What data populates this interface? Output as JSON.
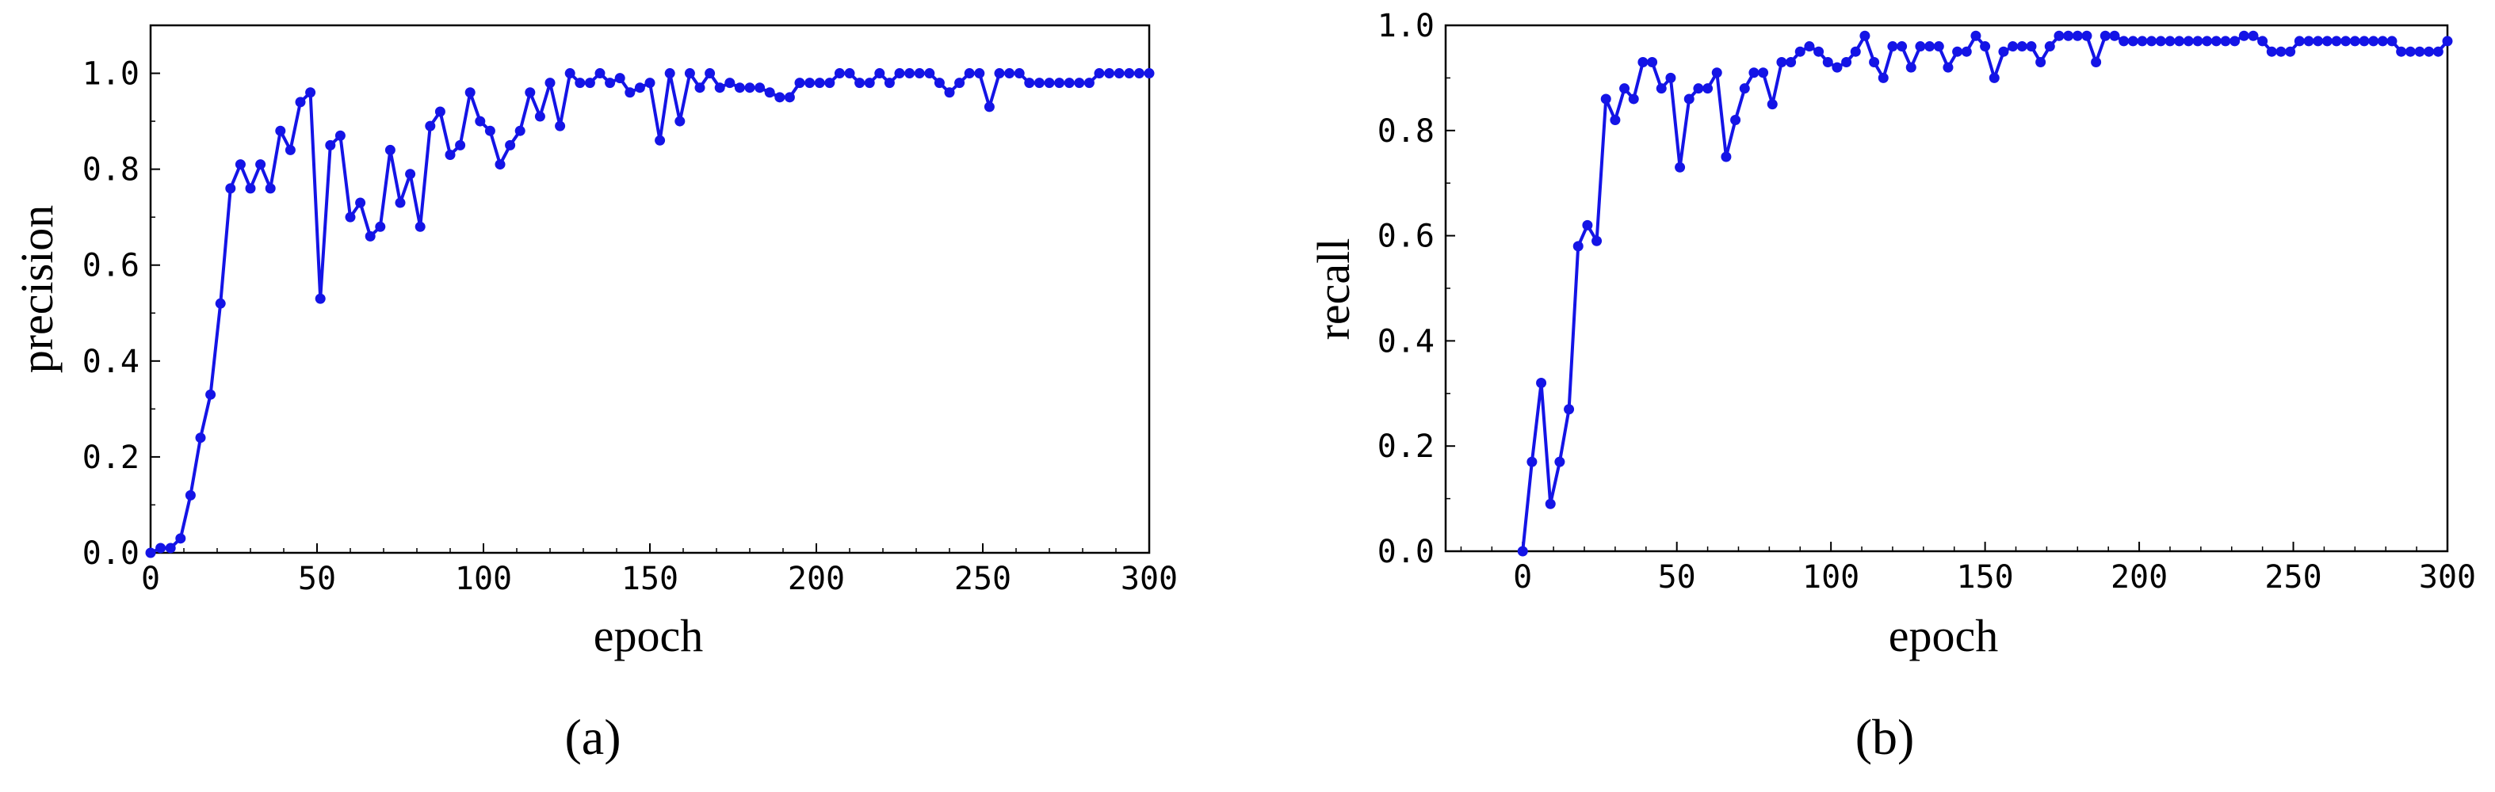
{
  "figure": {
    "panel_labels": [
      "(a)",
      "(b)"
    ]
  },
  "chart_data": [
    {
      "type": "line",
      "panel": "(a)",
      "xlabel": "epoch",
      "ylabel": "precision",
      "xlim": [
        0,
        300
      ],
      "ylim": [
        0,
        1.1
      ],
      "xticks": [
        "0",
        "50",
        "100",
        "150",
        "200",
        "250",
        "300"
      ],
      "yticks": [
        "0.0",
        "0.2",
        "0.4",
        "0.6",
        "0.8",
        "1.0"
      ],
      "grid": false,
      "line_color": "#1414e6",
      "series": [
        {
          "x": [
            0,
            3,
            6,
            9,
            12,
            15,
            18,
            21,
            24,
            27,
            30,
            33,
            36,
            39,
            42,
            45,
            48,
            51,
            54,
            57,
            60,
            63,
            66,
            69,
            72,
            75,
            78,
            81,
            84,
            87,
            90,
            93,
            96,
            99,
            102,
            105,
            108,
            111,
            114,
            117,
            120,
            123,
            126,
            129,
            132,
            135,
            138,
            141,
            144,
            147,
            150,
            153,
            156,
            159,
            162,
            165,
            168,
            171,
            174,
            177,
            180,
            183,
            186,
            189,
            192,
            195,
            198,
            201,
            204,
            207,
            210,
            213,
            216,
            219,
            222,
            225,
            228,
            231,
            234,
            237,
            240,
            243,
            246,
            249,
            252,
            255,
            258,
            261,
            264,
            267,
            270,
            273,
            276,
            279,
            282,
            285,
            288,
            291,
            294,
            297,
            300
          ],
          "y": [
            0.0,
            0.01,
            0.01,
            0.03,
            0.12,
            0.24,
            0.33,
            0.52,
            0.76,
            0.81,
            0.76,
            0.81,
            0.76,
            0.88,
            0.84,
            0.94,
            0.96,
            0.53,
            0.85,
            0.87,
            0.7,
            0.73,
            0.66,
            0.68,
            0.84,
            0.73,
            0.79,
            0.68,
            0.89,
            0.92,
            0.83,
            0.85,
            0.96,
            0.9,
            0.88,
            0.81,
            0.85,
            0.88,
            0.96,
            0.91,
            0.98,
            0.89,
            1.0,
            0.98,
            0.98,
            1.0,
            0.98,
            0.99,
            0.96,
            0.97,
            0.98,
            0.86,
            1.0,
            0.9,
            1.0,
            0.97,
            1.0,
            0.97,
            0.98,
            0.97,
            0.97,
            0.97,
            0.96,
            0.95,
            0.95,
            0.98,
            0.98,
            0.98,
            0.98,
            1.0,
            1.0,
            0.98,
            0.98,
            1.0,
            0.98,
            1.0,
            1.0,
            1.0,
            1.0,
            0.98,
            0.96,
            0.98,
            1.0,
            1.0,
            0.93,
            1.0,
            1.0,
            1.0,
            0.98,
            0.98,
            0.98,
            0.98,
            0.98,
            0.98,
            0.98,
            1.0,
            1.0,
            1.0,
            1.0,
            1.0,
            1.0
          ]
        }
      ]
    },
    {
      "type": "line",
      "panel": "(b)",
      "xlabel": "epoch",
      "ylabel": "recall",
      "xlim": [
        -25,
        300
      ],
      "ylim": [
        0,
        1.0
      ],
      "xticks": [
        "0",
        "50",
        "100",
        "150",
        "200",
        "250",
        "300"
      ],
      "yticks": [
        "0.0",
        "0.2",
        "0.4",
        "0.6",
        "0.8",
        "1.0"
      ],
      "grid": false,
      "line_color": "#1414e6",
      "series": [
        {
          "x": [
            0,
            3,
            6,
            9,
            12,
            15,
            18,
            21,
            24,
            27,
            30,
            33,
            36,
            39,
            42,
            45,
            48,
            51,
            54,
            57,
            60,
            63,
            66,
            69,
            72,
            75,
            78,
            81,
            84,
            87,
            90,
            93,
            96,
            99,
            102,
            105,
            108,
            111,
            114,
            117,
            120,
            123,
            126,
            129,
            132,
            135,
            138,
            141,
            144,
            147,
            150,
            153,
            156,
            159,
            162,
            165,
            168,
            171,
            174,
            177,
            180,
            183,
            186,
            189,
            192,
            195,
            198,
            201,
            204,
            207,
            210,
            213,
            216,
            219,
            222,
            225,
            228,
            231,
            234,
            237,
            240,
            243,
            246,
            249,
            252,
            255,
            258,
            261,
            264,
            267,
            270,
            273,
            276,
            279,
            282,
            285,
            288,
            291,
            294,
            297,
            300
          ],
          "y": [
            0.0,
            0.17,
            0.32,
            0.09,
            0.17,
            0.27,
            0.58,
            0.62,
            0.59,
            0.86,
            0.82,
            0.88,
            0.86,
            0.93,
            0.93,
            0.88,
            0.9,
            0.73,
            0.86,
            0.88,
            0.88,
            0.91,
            0.75,
            0.82,
            0.88,
            0.91,
            0.91,
            0.85,
            0.93,
            0.93,
            0.95,
            0.96,
            0.95,
            0.93,
            0.92,
            0.93,
            0.95,
            0.98,
            0.93,
            0.9,
            0.96,
            0.96,
            0.92,
            0.96,
            0.96,
            0.96,
            0.92,
            0.95,
            0.95,
            0.98,
            0.96,
            0.9,
            0.95,
            0.96,
            0.96,
            0.96,
            0.93,
            0.96,
            0.98,
            0.98,
            0.98,
            0.98,
            0.93,
            0.98,
            0.98,
            0.97,
            0.97,
            0.97,
            0.97,
            0.97,
            0.97,
            0.97,
            0.97,
            0.97,
            0.97,
            0.97,
            0.97,
            0.97,
            0.98,
            0.98,
            0.97,
            0.95,
            0.95,
            0.95,
            0.97,
            0.97,
            0.97,
            0.97,
            0.97,
            0.97,
            0.97,
            0.97,
            0.97,
            0.97,
            0.97,
            0.95,
            0.95,
            0.95,
            0.95,
            0.95,
            0.97
          ]
        }
      ]
    }
  ]
}
